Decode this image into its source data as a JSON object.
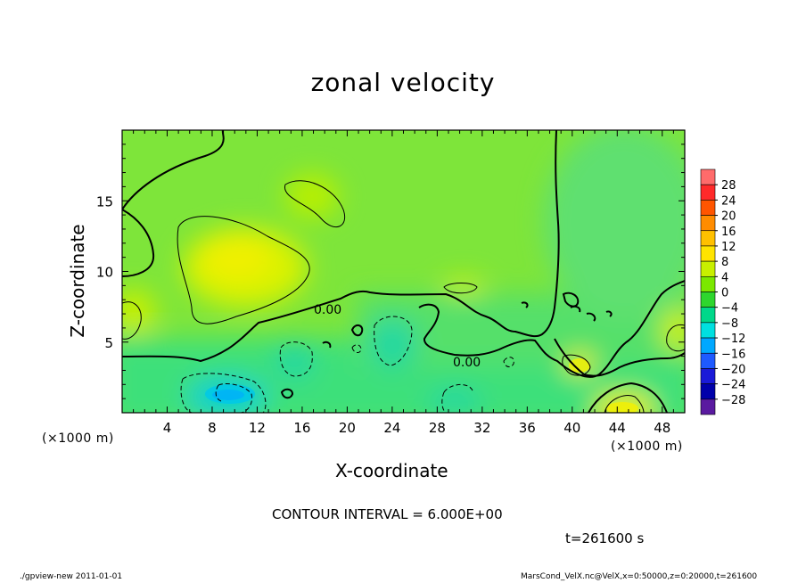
{
  "chart_data": {
    "type": "heatmap",
    "title": "zonal velocity",
    "xlabel": "X-coordinate",
    "ylabel": "Z-coordinate",
    "x_unit_note": "(×1000 m)",
    "y_unit_note": "(×1000 m)",
    "x_ticks": [
      4,
      8,
      12,
      16,
      20,
      24,
      28,
      32,
      36,
      40,
      44,
      48
    ],
    "y_ticks": [
      5,
      10,
      15
    ],
    "xlim": [
      0,
      50
    ],
    "ylim": [
      0,
      20
    ],
    "contour_interval_text": "CONTOUR INTERVAL = 6.000E+00",
    "zero_contour_labels": [
      "0.00",
      "0.00"
    ],
    "colorbar": {
      "levels": [
        28,
        24,
        20,
        16,
        12,
        8,
        4,
        0,
        -4,
        -8,
        -12,
        -16,
        -20,
        -24,
        -28
      ],
      "colors": [
        "#ff6b6b",
        "#ff2a2a",
        "#ff5500",
        "#ff8c00",
        "#ffc000",
        "#ffe400",
        "#c8f000",
        "#7be800",
        "#2ed62e",
        "#00d88a",
        "#00e0e0",
        "#00a8ff",
        "#1e5aff",
        "#1a1ad8",
        "#0000aa",
        "#5a1aa0"
      ]
    },
    "timestamp": "t=261600 s",
    "field_regions": [
      {
        "kind": "positive",
        "x": [
          7,
          14
        ],
        "z": [
          8,
          14
        ],
        "value": 8
      },
      {
        "kind": "positive",
        "x": [
          40,
          44
        ],
        "z": [
          2.5,
          4
        ],
        "value": 6
      },
      {
        "kind": "positive",
        "x": [
          43,
          46
        ],
        "z": [
          0,
          1.2
        ],
        "value": 8
      },
      {
        "kind": "negative",
        "x": [
          7,
          12
        ],
        "z": [
          0.5,
          2.5
        ],
        "value": -10
      },
      {
        "kind": "negative",
        "x": [
          13,
          17
        ],
        "z": [
          3,
          6
        ],
        "value": -6
      },
      {
        "kind": "negative",
        "x": [
          22,
          27
        ],
        "z": [
          3.5,
          6.5
        ],
        "value": -5
      },
      {
        "kind": "negative",
        "x": [
          44,
          50
        ],
        "z": [
          12,
          18
        ],
        "value": -3
      }
    ]
  },
  "footer": {
    "left": "./gpview-new   2011-01-01",
    "right": "MarsCond_VelX.nc@VelX,x=0:50000,z=0:20000,t=261600"
  }
}
